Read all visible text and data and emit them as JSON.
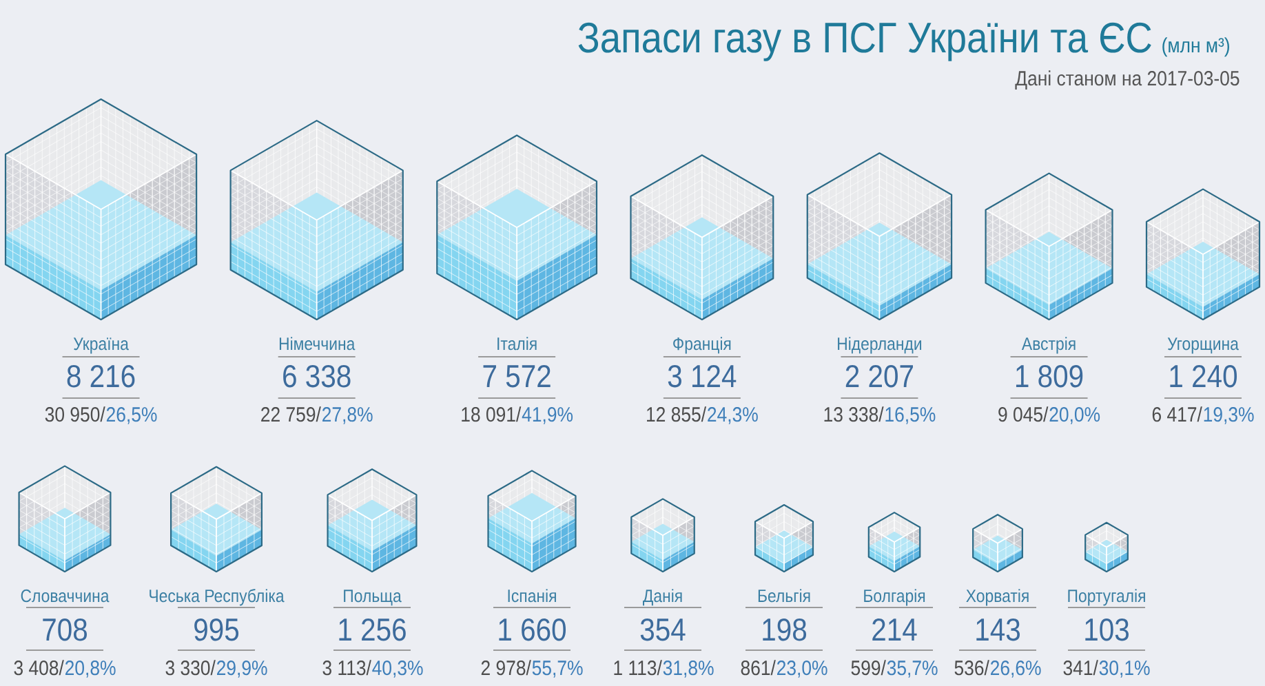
{
  "chart_data": {
    "type": "other",
    "title": "Запаси газу в ПСГ України та ЄС",
    "subtitle": "(млн м³)",
    "annotations": [
      "Дані станом на 2017-03-05"
    ],
    "categories": [
      "Україна",
      "Німеччина",
      "Італія",
      "Франція",
      "Нідерланди",
      "Австрія",
      "Угорщина",
      "Словаччина",
      "Чеська Республіка",
      "Польща",
      "Іспанія",
      "Данія",
      "Бельгія",
      "Болгарія",
      "Хорватія",
      "Португалія"
    ],
    "series": [
      {
        "color": "#3d6b9c",
        "values": [
          8216,
          6338,
          7572,
          3124,
          2207,
          1809,
          1240,
          708,
          995,
          1256,
          1660,
          354,
          198,
          214,
          143,
          103
        ],
        "value_labels": [
          "8 216",
          "6 338",
          "7 572",
          "3 124",
          "2 207",
          "1 809",
          "1 240",
          "708",
          "995",
          "1 256",
          "1 660",
          "354",
          "198",
          "214",
          "143",
          "103"
        ]
      },
      {
        "color": "#d7d8dd",
        "values": [
          30950,
          22759,
          18091,
          12855,
          13338,
          9045,
          6417,
          3408,
          3330,
          3113,
          2978,
          1113,
          861,
          599,
          536,
          341
        ],
        "value_labels": [
          "30 950/",
          "22 759/",
          "18 091/",
          "12 855/",
          "13 338/",
          "9 045/",
          "6 417/",
          "3 408/",
          "3 330/",
          "3 113/",
          "2 978/",
          "1 113/",
          "861/",
          "599/",
          "536/",
          "341/"
        ]
      },
      {
        "color": "#84d5f0",
        "values": [
          26.5,
          27.8,
          41.9,
          24.3,
          16.5,
          20.0,
          19.3,
          20.8,
          29.9,
          40.3,
          55.7,
          31.8,
          23.0,
          35.7,
          26.6,
          30.1
        ],
        "value_labels": [
          "26,5%",
          "27,8%",
          "41,9%",
          "24,3%",
          "16,5%",
          "20,0%",
          "19,3%",
          "20,8%",
          "29,9%",
          "40,3%",
          "55,7%",
          "31,8%",
          "23,0%",
          "35,7%",
          "26,6%",
          "30,1%"
        ]
      }
    ]
  }
}
